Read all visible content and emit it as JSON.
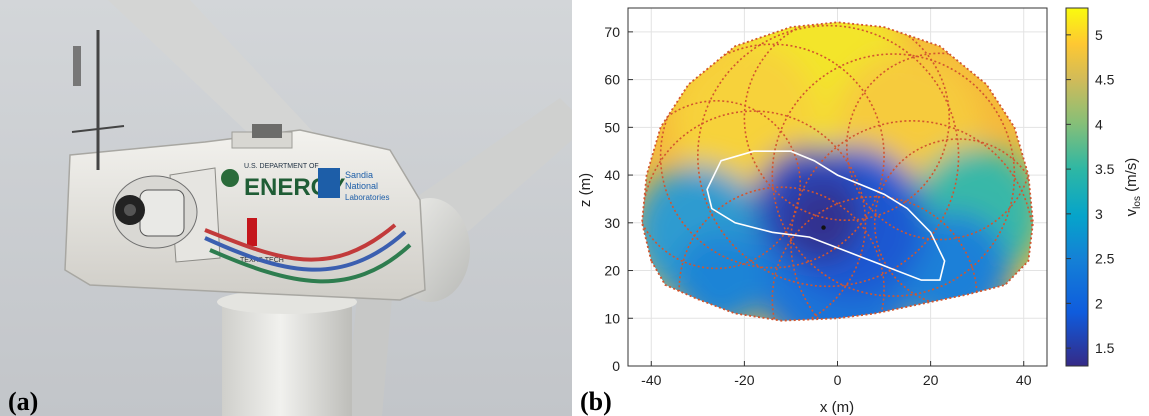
{
  "panel_a": {
    "label": "(a)",
    "logos": {
      "doe_small": "U.S. DEPARTMENT OF",
      "doe_big": "ENERGY",
      "sandia_1": "Sandia",
      "sandia_2": "National",
      "sandia_3": "Laboratories",
      "ttu": "TEXAS TECH"
    },
    "colors": {
      "sky": "#c9ccd0",
      "nacelle": "#eceae6",
      "tower": "#dcdcd8",
      "blade": "#d2d3d2"
    }
  },
  "panel_b": {
    "label": "(b)",
    "chart_data": {
      "type": "heatmap",
      "xlabel": "x (m)",
      "ylabel": "z (m)",
      "xlim": [
        -45,
        45
      ],
      "ylim": [
        0,
        75
      ],
      "x_ticks": [
        -40,
        -20,
        0,
        20,
        40
      ],
      "y_ticks": [
        0,
        10,
        20,
        30,
        40,
        50,
        60,
        70
      ],
      "grid": true,
      "colorbar": {
        "label": "v_los (m/s)",
        "label_main": "v",
        "label_sub": "los",
        "label_tail": " (m/s)",
        "range": [
          1.3,
          5.3
        ],
        "ticks": [
          1.5,
          2,
          2.5,
          3,
          3.5,
          4,
          4.5,
          5
        ],
        "tick_labels": [
          "1.5",
          "2",
          "2.5",
          "3",
          "3.5",
          "4",
          "4.5",
          "5"
        ]
      },
      "scan_center": {
        "x": -3,
        "z": 29
      },
      "scan_radius_outer": 43,
      "wake_contour_color": "#ffffff",
      "scan_pattern_color": "#d2552e",
      "region_color_descriptions": {
        "upper": "4.5–5.2 m/s (yellow)",
        "wake_core": "1.4–1.8 m/s (dark blue)"
      }
    }
  }
}
